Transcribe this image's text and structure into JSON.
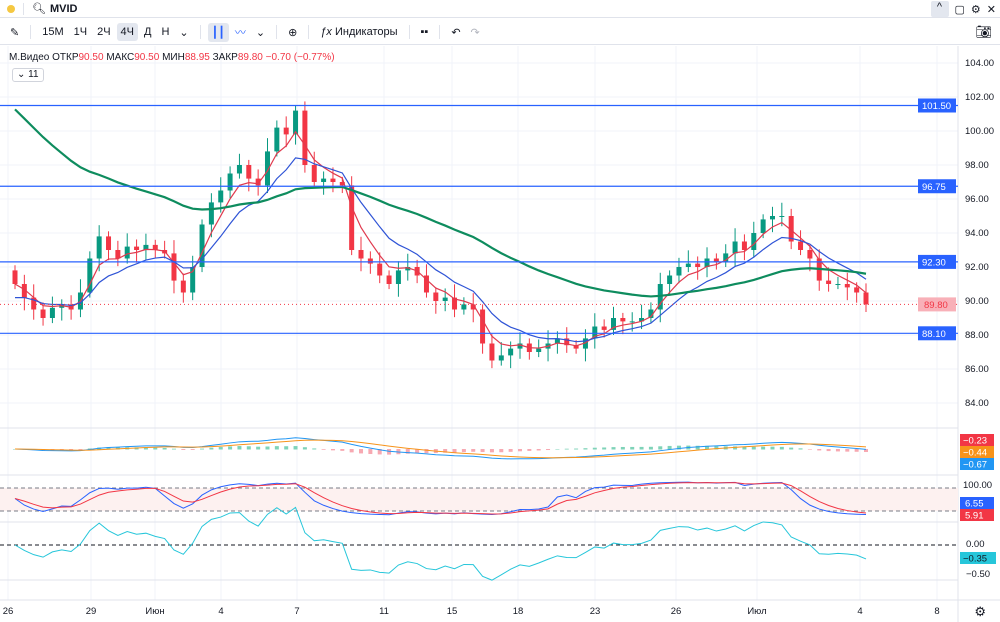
{
  "topbar": {
    "symbol": "MVID",
    "icons": [
      "search-icon",
      "chevron-up-icon",
      "maximize-icon",
      "gear-icon",
      "close-icon"
    ]
  },
  "toolbar": {
    "intervals": [
      "15M",
      "1Ч",
      "2Ч",
      "4Ч",
      "Д",
      "Н"
    ],
    "active_interval": "4Ч",
    "indicators_label": "Индикаторы"
  },
  "legend": {
    "name": "М.Видео",
    "open_label": "ОТКР",
    "open": "90.50",
    "high_label": "МАКС",
    "high": "90.50",
    "low_label": "МИН",
    "low": "88.95",
    "close_label": "ЗАКР",
    "close": "89.80",
    "change": "−0.70 (−0.77%)",
    "collapse_count": "11"
  },
  "colors": {
    "up": "#089981",
    "down": "#f23645",
    "ema_fast": "#e03a4e",
    "ema_mid": "#2f54d6",
    "ema_slow": "#0e8c5e",
    "hline": "#2962ff"
  },
  "chart_data": {
    "type": "candlestick",
    "ylim": [
      83,
      105
    ],
    "y_ticks": [
      "104.00",
      "102.00",
      "100.00",
      "98.00",
      "96.00",
      "94.00",
      "92.00",
      "90.00",
      "88.00",
      "86.00",
      "84.00"
    ],
    "x_ticks": [
      "26",
      "29",
      "Июн",
      "4",
      "7",
      "11",
      "15",
      "18",
      "23",
      "26",
      "Июл",
      "4",
      "8"
    ],
    "closes": [
      91.0,
      90.2,
      89.5,
      89.0,
      89.6,
      89.8,
      89.5,
      90.5,
      92.5,
      93.8,
      93.0,
      92.5,
      93.2,
      93.0,
      93.3,
      93.0,
      92.8,
      91.2,
      90.5,
      92.0,
      94.5,
      95.8,
      96.5,
      97.5,
      98.0,
      97.2,
      96.8,
      98.8,
      100.2,
      99.8,
      101.2,
      98.0,
      97.0,
      97.2,
      97.0,
      96.8,
      93.0,
      92.5,
      92.2,
      91.5,
      91.0,
      91.8,
      92.0,
      91.5,
      90.5,
      90.0,
      90.2,
      89.5,
      89.8,
      89.5,
      87.5,
      86.5,
      86.8,
      87.2,
      87.5,
      87.0,
      87.2,
      87.5,
      87.8,
      87.4,
      87.2,
      87.8,
      88.5,
      88.3,
      89.0,
      88.8,
      88.8,
      89.0,
      89.5,
      91.0,
      91.5,
      92.0,
      92.2,
      92.0,
      92.5,
      92.3,
      92.8,
      93.5,
      93.0,
      94.0,
      94.8,
      95.0,
      95.0,
      93.5,
      93.0,
      92.5,
      91.2,
      91.0,
      91.0,
      90.8,
      90.5,
      89.8
    ],
    "open_first": 91.8,
    "ema_periods": [
      4,
      9,
      40
    ],
    "slow_ema_seed": 101.8,
    "horizontal_levels": [
      {
        "value": 101.5,
        "label": "101.50"
      },
      {
        "value": 96.75,
        "label": "96.75"
      },
      {
        "value": 92.3,
        "label": "92.30"
      },
      {
        "value": 88.1,
        "label": "88.10"
      }
    ],
    "last_price": {
      "value": 89.8,
      "label": "89.80"
    },
    "macd": {
      "labels": [
        {
          "text": "−0.23",
          "color": "#f23645"
        },
        {
          "text": "−0.44",
          "color": "#f7931a"
        },
        {
          "text": "−0.67",
          "color": "#2196f3"
        }
      ]
    },
    "stochastic": {
      "upper": "100.00",
      "labels": [
        {
          "text": "6.55",
          "color": "#2962ff"
        },
        {
          "text": "5.91",
          "color": "#f23645"
        }
      ]
    },
    "oscillator": {
      "zero": "0.00",
      "lower": "−0.50",
      "labels": [
        {
          "text": "−0.35",
          "color": "#26c6da"
        }
      ]
    }
  }
}
